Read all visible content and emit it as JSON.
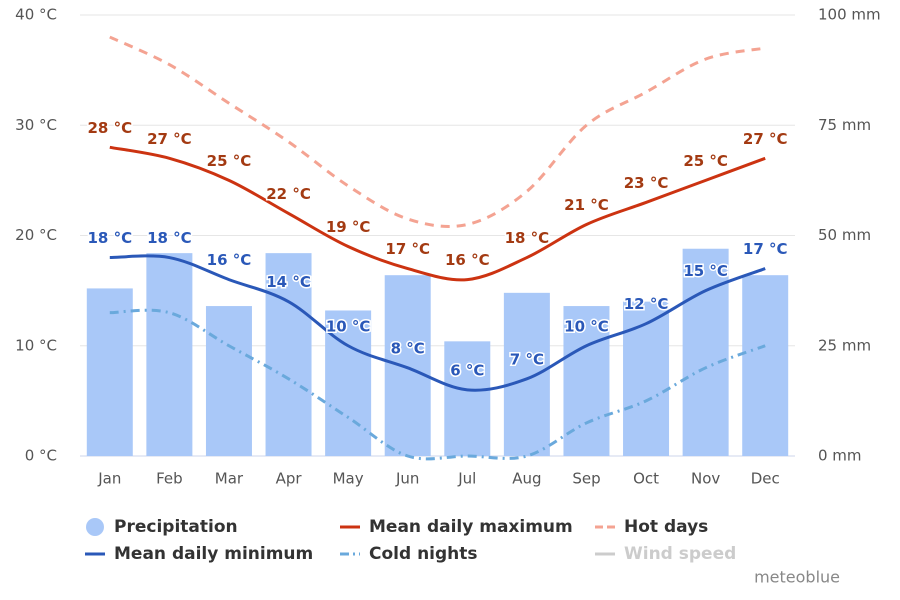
{
  "chart_data": {
    "type": "combo",
    "categories": [
      "Jan",
      "Feb",
      "Mar",
      "Apr",
      "May",
      "Jun",
      "Jul",
      "Aug",
      "Sep",
      "Oct",
      "Nov",
      "Dec"
    ],
    "ylim": [
      0,
      40
    ],
    "yticks": [
      {
        "value": 0,
        "label": "0 °C"
      },
      {
        "value": 10,
        "label": "10 °C"
      },
      {
        "value": 20,
        "label": "20 °C"
      },
      {
        "value": 30,
        "label": "30 °C"
      },
      {
        "value": 40,
        "label": "40 °C"
      }
    ],
    "y2lim": [
      0,
      100
    ],
    "y2ticks": [
      {
        "value": 0,
        "label": "0 mm"
      },
      {
        "value": 25,
        "label": "25 mm"
      },
      {
        "value": 50,
        "label": "50 mm"
      },
      {
        "value": 75,
        "label": "75 mm"
      },
      {
        "value": 100,
        "label": "100 mm"
      }
    ],
    "grid": true,
    "series": [
      {
        "name": "Precipitation",
        "type": "bar",
        "axis": "y2",
        "color": "#a9c8f8",
        "values": [
          38,
          46,
          34,
          46,
          33,
          41,
          26,
          37,
          34,
          35,
          47,
          41
        ]
      },
      {
        "name": "Mean daily maximum",
        "type": "line",
        "color": "#cc3311",
        "label_color": "#a33a12",
        "values": [
          28,
          27,
          25,
          22,
          19,
          17,
          16,
          18,
          21,
          23,
          25,
          27
        ],
        "value_labels": [
          "28 °C",
          "27 °C",
          "25 °C",
          "22 °C",
          "19 °C",
          "17 °C",
          "16 °C",
          "18 °C",
          "21 °C",
          "23 °C",
          "25 °C",
          "27 °C"
        ]
      },
      {
        "name": "Hot days",
        "type": "line",
        "dash": "dashed",
        "color": "#f4a392",
        "values": [
          38,
          35.5,
          32,
          28.5,
          24.5,
          21.5,
          21,
          24,
          30,
          33,
          36,
          37
        ]
      },
      {
        "name": "Mean daily minimum",
        "type": "line",
        "color": "#2a58b8",
        "label_color": "#2a58b8",
        "values": [
          18,
          18,
          16,
          14,
          10,
          8,
          6,
          7,
          10,
          12,
          15,
          17
        ],
        "value_labels": [
          "18 °C",
          "18 °C",
          "16 °C",
          "14 °C",
          "10 °C",
          "8 °C",
          "6 °C",
          "7 °C",
          "10 °C",
          "12 °C",
          "15 °C",
          "17 °C"
        ]
      },
      {
        "name": "Cold nights",
        "type": "line",
        "dash": "dashdot",
        "color": "#6aa9dc",
        "values": [
          13,
          13,
          10,
          7,
          3.5,
          0,
          0,
          0,
          3,
          5,
          8,
          10
        ]
      },
      {
        "name": "Wind speed",
        "type": "line",
        "color": "#cccccc",
        "hidden": true,
        "values": [
          null,
          null,
          null,
          null,
          null,
          null,
          null,
          null,
          null,
          null,
          null,
          null
        ]
      }
    ],
    "credit": "meteoblue"
  }
}
